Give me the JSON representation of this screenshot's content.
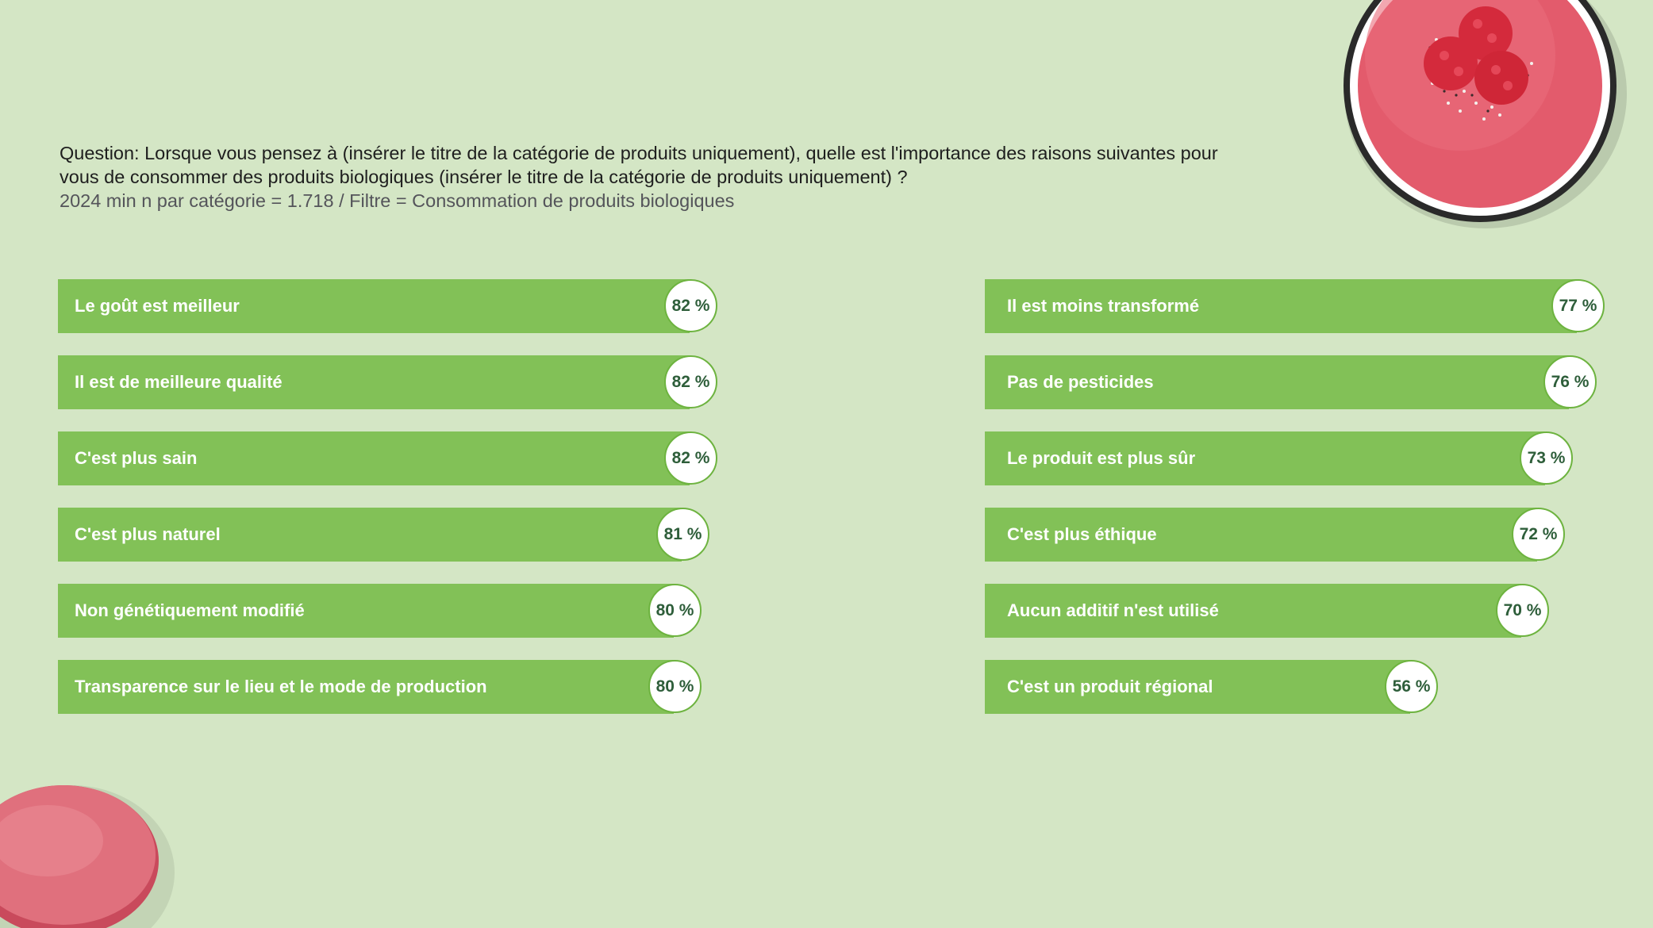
{
  "header": {
    "question": "Question: Lorsque vous pensez à (insérer le titre de la catégorie de produits uniquement), quelle est l'importance des raisons suivantes pour vous de consommer des produits biologiques (insérer le titre de la catégorie de produits uniquement) ?",
    "meta": "2024 min n par catégorie = 1.718 / Filtre = Consommation de produits biologiques"
  },
  "colors": {
    "background": "#d4e6c5",
    "bar": "#82c157",
    "badge_border": "#6db33f",
    "badge_text": "#2e5e3a"
  },
  "decorations": {
    "top_right": "smoothie-bowl-image",
    "bottom_left": "macaron-image"
  },
  "chart_data": {
    "type": "bar",
    "orientation": "horizontal",
    "unit": "%",
    "xlim": [
      0,
      100
    ],
    "columns": [
      {
        "categories": [
          "Le goût est meilleur",
          "Il est de meilleure qualité",
          "C'est plus sain",
          "C'est plus naturel",
          "Non génétiquement modifié",
          "Transparence sur le lieu et le mode de production"
        ],
        "values": [
          82,
          82,
          82,
          81,
          80,
          80
        ],
        "labels": [
          "82 %",
          "82 %",
          "82 %",
          "81 %",
          "80 %",
          "80 %"
        ]
      },
      {
        "categories": [
          "Il est moins transformé",
          "Pas de pesticides",
          "Le produit est plus sûr",
          "C'est plus éthique",
          "Aucun additif n'est utilisé",
          "C'est un produit régional"
        ],
        "values": [
          77,
          76,
          73,
          72,
          70,
          56
        ],
        "labels": [
          "77 %",
          "76 %",
          "73 %",
          "72 %",
          "70 %",
          "56 %"
        ]
      }
    ]
  }
}
